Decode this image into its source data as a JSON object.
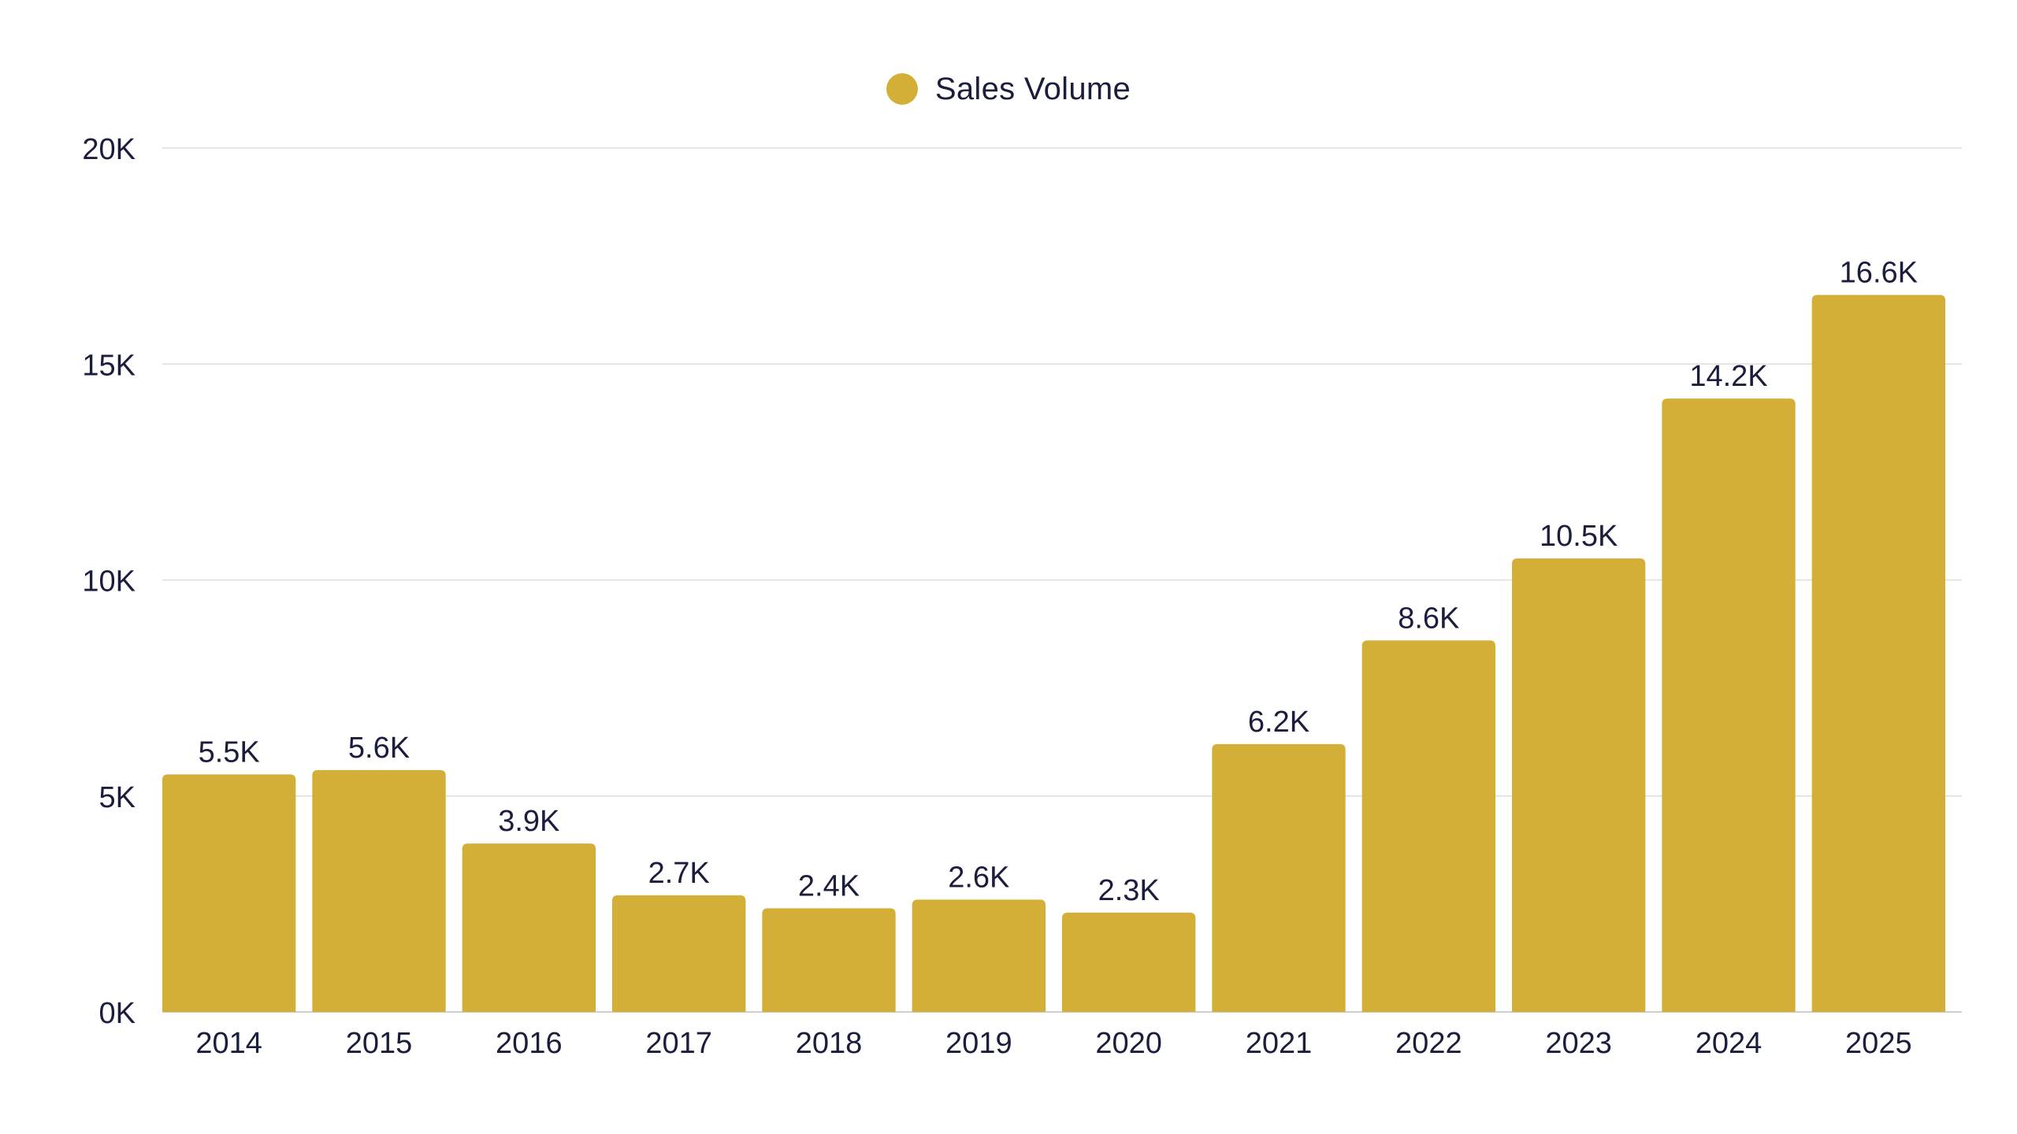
{
  "chart_data": {
    "type": "bar",
    "title": "",
    "xlabel": "",
    "ylabel": "",
    "categories": [
      "2014",
      "2015",
      "2016",
      "2017",
      "2018",
      "2019",
      "2020",
      "2021",
      "2022",
      "2023",
      "2024",
      "2025"
    ],
    "series": [
      {
        "name": "Sales Volume",
        "color": "#D4AF37",
        "values": [
          5500,
          5600,
          3900,
          2700,
          2400,
          2600,
          2300,
          6200,
          8600,
          10500,
          14200,
          16600
        ],
        "value_labels": [
          "5.5K",
          "5.6K",
          "3.9K",
          "2.7K",
          "2.4K",
          "2.6K",
          "2.3K",
          "6.2K",
          "8.6K",
          "10.5K",
          "14.2K",
          "16.6K"
        ]
      }
    ],
    "ylim": [
      0,
      20000
    ],
    "yticks": [
      0,
      5000,
      10000,
      15000,
      20000
    ],
    "ytick_labels": [
      "0K",
      "5K",
      "10K",
      "15K",
      "20K"
    ],
    "grid": true,
    "legend_position": "top-center"
  },
  "legend": {
    "label": "Sales Volume",
    "color": "#D4AF37"
  },
  "colors": {
    "bar": "#D4AF37",
    "text": "#1b1d3d",
    "grid": "#dddddd",
    "axis": "#cfcfcf"
  }
}
